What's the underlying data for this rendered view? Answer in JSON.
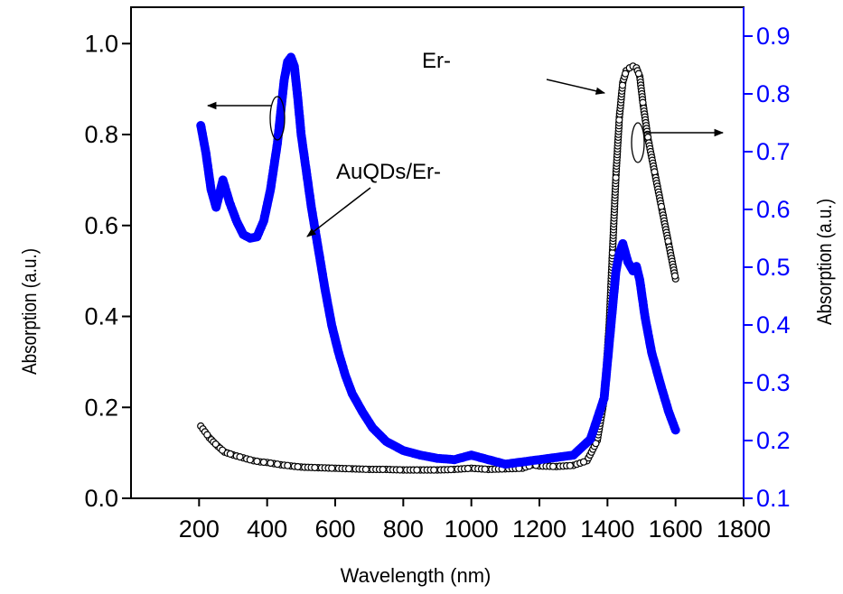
{
  "chart_data": {
    "type": "scatter",
    "title": "",
    "xlabel": "Wavelength (nm)",
    "ylabel_left": "Absorption (a.u.)",
    "ylabel_right": "Absorption (a.u.)",
    "xlim": [
      0,
      1800
    ],
    "xticks": [
      200,
      400,
      600,
      800,
      1000,
      1200,
      1400,
      1600,
      1800
    ],
    "xtick_labels": [
      "200",
      "400",
      "600",
      "800",
      "1000",
      "1200",
      "1400",
      "1600",
      "1800"
    ],
    "ylim_left": [
      0.0,
      1.08
    ],
    "yticks_left": [
      0.0,
      0.2,
      0.4,
      0.6,
      0.8,
      1.0
    ],
    "ytick_labels_left": [
      "0.0",
      "0.2",
      "0.4",
      "0.6",
      "0.8",
      "1.0"
    ],
    "ylim_right": [
      0.1,
      0.95
    ],
    "yticks_right": [
      0.1,
      0.2,
      0.3,
      0.4,
      0.5,
      0.6,
      0.7,
      0.8,
      0.9
    ],
    "ytick_labels_right": [
      "0.1",
      "0.2",
      "0.3",
      "0.4",
      "0.5",
      "0.6",
      "0.7",
      "0.8",
      "0.9"
    ],
    "right_axis_color": "#0000ff",
    "grid": false,
    "annotations": [
      {
        "text": "Er-",
        "points_to_series": 0
      },
      {
        "text": "AuQDs/Er-",
        "points_to_series": 1
      }
    ],
    "series": [
      {
        "name": "Er-",
        "axis": "right",
        "marker": "open-circle",
        "color": "#000000",
        "x": [
          205,
          230,
          255,
          275,
          300,
          330,
          360,
          380,
          400,
          420,
          440,
          470,
          500,
          550,
          600,
          650,
          700,
          750,
          800,
          850,
          900,
          950,
          1000,
          1050,
          1100,
          1150,
          1180,
          1200,
          1250,
          1300,
          1340,
          1370,
          1390,
          1405,
          1415,
          1425,
          1435,
          1445,
          1455,
          1465,
          1475,
          1485,
          1495,
          1505,
          1520,
          1540,
          1560,
          1580,
          1600
        ],
        "y": [
          0.225,
          0.205,
          0.19,
          0.18,
          0.175,
          0.17,
          0.165,
          0.163,
          0.162,
          0.16,
          0.158,
          0.156,
          0.154,
          0.153,
          0.152,
          0.151,
          0.15,
          0.15,
          0.149,
          0.149,
          0.149,
          0.15,
          0.152,
          0.15,
          0.151,
          0.152,
          0.158,
          0.156,
          0.155,
          0.157,
          0.165,
          0.2,
          0.27,
          0.4,
          0.53,
          0.66,
          0.76,
          0.82,
          0.84,
          0.845,
          0.848,
          0.845,
          0.83,
          0.78,
          0.72,
          0.66,
          0.6,
          0.54,
          0.48
        ]
      },
      {
        "name": "AuQDs/Er-",
        "axis": "left",
        "marker": "filled-circle",
        "color": "#0000ff",
        "x": [
          205,
          220,
          235,
          250,
          270,
          290,
          310,
          330,
          350,
          370,
          390,
          410,
          430,
          450,
          460,
          470,
          480,
          490,
          500,
          515,
          530,
          550,
          570,
          590,
          610,
          630,
          650,
          680,
          710,
          750,
          800,
          850,
          900,
          950,
          1000,
          1050,
          1100,
          1150,
          1200,
          1250,
          1300,
          1350,
          1390,
          1410,
          1425,
          1435,
          1445,
          1460,
          1475,
          1485,
          1495,
          1510,
          1530,
          1560,
          1580,
          1600
        ],
        "y": [
          0.82,
          0.76,
          0.68,
          0.64,
          0.7,
          0.65,
          0.61,
          0.58,
          0.572,
          0.575,
          0.61,
          0.68,
          0.78,
          0.92,
          0.96,
          0.97,
          0.95,
          0.88,
          0.8,
          0.72,
          0.64,
          0.55,
          0.46,
          0.38,
          0.32,
          0.27,
          0.23,
          0.19,
          0.155,
          0.125,
          0.105,
          0.095,
          0.088,
          0.085,
          0.095,
          0.085,
          0.075,
          0.08,
          0.085,
          0.09,
          0.095,
          0.13,
          0.22,
          0.38,
          0.5,
          0.54,
          0.56,
          0.52,
          0.5,
          0.51,
          0.48,
          0.4,
          0.32,
          0.24,
          0.19,
          0.15
        ]
      }
    ]
  }
}
